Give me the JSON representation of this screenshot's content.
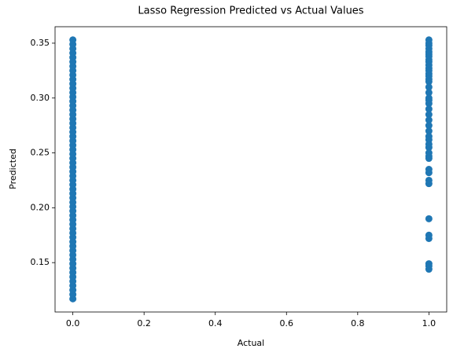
{
  "chart_data": {
    "type": "scatter",
    "title": "Lasso Regression Predicted vs Actual Values",
    "xlabel": "Actual",
    "ylabel": "Predicted",
    "color": "#1f77b4",
    "xlim": [
      -0.05,
      1.05
    ],
    "xticks": [
      {
        "value": 0,
        "label": "0.0"
      },
      {
        "value": 0.2,
        "label": "0.2"
      },
      {
        "value": 0.4,
        "label": "0.4"
      },
      {
        "value": 0.6,
        "label": "0.6"
      },
      {
        "value": 0.8,
        "label": "0.8"
      },
      {
        "value": 1,
        "label": "1.0"
      }
    ],
    "ylim": [
      0.105,
      0.365
    ],
    "yticks": [
      0.15,
      {
        "value": 0.2,
        "label": "0.20"
      },
      0.25,
      {
        "value": 0.3,
        "label": "0.30"
      },
      0.35
    ],
    "x": [
      0,
      0,
      0,
      0,
      0,
      0,
      0,
      0,
      0,
      0,
      0,
      0,
      0,
      0,
      0,
      0,
      0,
      0,
      0,
      0,
      0,
      0,
      0,
      0,
      0,
      0,
      0,
      0,
      0,
      0,
      0,
      0,
      0,
      0,
      0,
      0,
      0,
      0,
      0,
      0,
      0,
      0,
      0,
      0,
      0,
      0,
      0,
      0,
      0,
      0,
      0,
      0,
      0,
      0,
      0,
      0,
      0,
      0,
      0,
      0,
      1,
      1,
      1,
      1,
      1,
      1,
      1,
      1,
      1,
      1,
      1,
      1,
      1,
      1,
      1,
      1,
      1,
      1,
      1,
      1,
      1,
      1,
      1,
      1,
      1,
      1,
      1,
      1,
      1,
      1,
      1,
      1,
      1,
      1,
      1,
      1,
      1,
      1,
      1,
      1,
      1,
      1,
      1
    ],
    "values": [
      0.117,
      0.121,
      0.125,
      0.129,
      0.133,
      0.137,
      0.141,
      0.145,
      0.149,
      0.153,
      0.157,
      0.161,
      0.165,
      0.169,
      0.173,
      0.177,
      0.181,
      0.185,
      0.189,
      0.193,
      0.197,
      0.201,
      0.205,
      0.209,
      0.213,
      0.217,
      0.221,
      0.225,
      0.229,
      0.233,
      0.237,
      0.241,
      0.245,
      0.249,
      0.253,
      0.257,
      0.261,
      0.265,
      0.269,
      0.273,
      0.277,
      0.281,
      0.285,
      0.289,
      0.293,
      0.297,
      0.301,
      0.305,
      0.309,
      0.313,
      0.317,
      0.321,
      0.325,
      0.329,
      0.333,
      0.337,
      0.341,
      0.345,
      0.349,
      0.353,
      0.353,
      0.35,
      0.348,
      0.345,
      0.342,
      0.34,
      0.338,
      0.335,
      0.333,
      0.33,
      0.327,
      0.325,
      0.322,
      0.32,
      0.317,
      0.315,
      0.31,
      0.305,
      0.3,
      0.298,
      0.295,
      0.29,
      0.285,
      0.28,
      0.275,
      0.27,
      0.265,
      0.262,
      0.258,
      0.255,
      0.25,
      0.247,
      0.245,
      0.235,
      0.232,
      0.225,
      0.222,
      0.19,
      0.175,
      0.172,
      0.149,
      0.147,
      0.144
    ]
  }
}
